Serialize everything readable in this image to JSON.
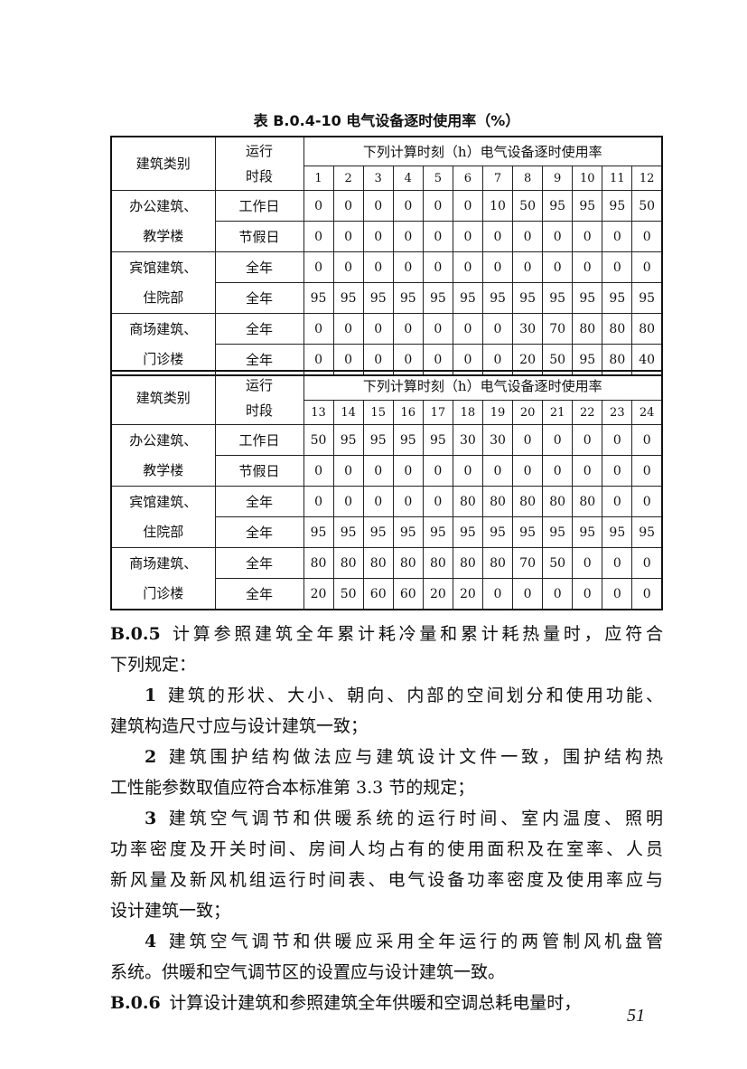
{
  "table": {
    "caption": "表 B.0.4-10  电气设备逐时使用率（%）",
    "header_category": "建筑类别",
    "header_period": "运行时段",
    "header_hours": "下列计算时刻（h）电气设备逐时使用率",
    "halves": [
      {
        "hours": [
          "1",
          "2",
          "3",
          "4",
          "5",
          "6",
          "7",
          "8",
          "9",
          "10",
          "11",
          "12"
        ],
        "rows": [
          {
            "category": "办公建筑、教学楼",
            "periods": [
              {
                "label": "工作日",
                "values": [
                  "0",
                  "0",
                  "0",
                  "0",
                  "0",
                  "0",
                  "10",
                  "50",
                  "95",
                  "95",
                  "95",
                  "50"
                ]
              },
              {
                "label": "节假日",
                "values": [
                  "0",
                  "0",
                  "0",
                  "0",
                  "0",
                  "0",
                  "0",
                  "0",
                  "0",
                  "0",
                  "0",
                  "0"
                ]
              }
            ]
          },
          {
            "category": "宾馆建筑、住院部",
            "periods": [
              {
                "label": "全年",
                "values": [
                  "0",
                  "0",
                  "0",
                  "0",
                  "0",
                  "0",
                  "0",
                  "0",
                  "0",
                  "0",
                  "0",
                  "0"
                ]
              },
              {
                "label": "全年",
                "values": [
                  "95",
                  "95",
                  "95",
                  "95",
                  "95",
                  "95",
                  "95",
                  "95",
                  "95",
                  "95",
                  "95",
                  "95"
                ]
              }
            ]
          },
          {
            "category": "商场建筑、门诊楼",
            "periods": [
              {
                "label": "全年",
                "values": [
                  "0",
                  "0",
                  "0",
                  "0",
                  "0",
                  "0",
                  "0",
                  "30",
                  "70",
                  "80",
                  "80",
                  "80"
                ]
              },
              {
                "label": "全年",
                "values": [
                  "0",
                  "0",
                  "0",
                  "0",
                  "0",
                  "0",
                  "0",
                  "20",
                  "50",
                  "95",
                  "80",
                  "40"
                ]
              }
            ]
          }
        ]
      },
      {
        "hours": [
          "13",
          "14",
          "15",
          "16",
          "17",
          "18",
          "19",
          "20",
          "21",
          "22",
          "23",
          "24"
        ],
        "rows": [
          {
            "category": "办公建筑、教学楼",
            "periods": [
              {
                "label": "工作日",
                "values": [
                  "50",
                  "95",
                  "95",
                  "95",
                  "95",
                  "30",
                  "30",
                  "0",
                  "0",
                  "0",
                  "0",
                  "0"
                ]
              },
              {
                "label": "节假日",
                "values": [
                  "0",
                  "0",
                  "0",
                  "0",
                  "0",
                  "0",
                  "0",
                  "0",
                  "0",
                  "0",
                  "0",
                  "0"
                ]
              }
            ]
          },
          {
            "category": "宾馆建筑、住院部",
            "periods": [
              {
                "label": "全年",
                "values": [
                  "0",
                  "0",
                  "0",
                  "0",
                  "0",
                  "80",
                  "80",
                  "80",
                  "80",
                  "80",
                  "0",
                  "0"
                ]
              },
              {
                "label": "全年",
                "values": [
                  "95",
                  "95",
                  "95",
                  "95",
                  "95",
                  "95",
                  "95",
                  "95",
                  "95",
                  "95",
                  "95",
                  "95"
                ]
              }
            ]
          },
          {
            "category": "商场建筑、门诊楼",
            "periods": [
              {
                "label": "全年",
                "values": [
                  "80",
                  "80",
                  "80",
                  "80",
                  "80",
                  "80",
                  "80",
                  "70",
                  "50",
                  "0",
                  "0",
                  "0"
                ]
              },
              {
                "label": "全年",
                "values": [
                  "20",
                  "50",
                  "60",
                  "60",
                  "20",
                  "20",
                  "0",
                  "0",
                  "0",
                  "0",
                  "0",
                  "0"
                ]
              }
            ]
          }
        ]
      }
    ]
  },
  "paragraphs": [
    {
      "id": "B.0.5",
      "lines": [
        "计算参照建筑全年累计耗冷量和累计耗热量时，应符合",
        "下列规定："
      ]
    },
    {
      "id": "1",
      "lines": [
        "建筑的形状、大小、朝向、内部的空间划分和使用功能、",
        "建筑构造尺寸应与设计建筑一致；"
      ]
    },
    {
      "id": "2",
      "lines": [
        "建筑围护结构做法应与建筑设计文件一致，围护结构热",
        "工性能参数取值应符合本标准第 3.3 节的规定；"
      ]
    },
    {
      "id": "3",
      "lines": [
        "建筑空气调节和供暖系统的运行时间、室内温度、照明",
        "功率密度及开关时间、房间人均占有的使用面积及在室率、人员",
        "新风量及新风机组运行时间表、电气设备功率密度及使用率应与",
        "设计建筑一致；"
      ]
    },
    {
      "id": "4",
      "lines": [
        "建筑空气调节和供暖应采用全年运行的两管制风机盘管",
        "系统。供暖和空气调节区的设置应与设计建筑一致。"
      ]
    },
    {
      "id": "B.0.6",
      "lines": [
        "计算设计建筑和参照建筑全年供暖和空调总耗电量时，"
      ]
    }
  ],
  "page_number": "51"
}
